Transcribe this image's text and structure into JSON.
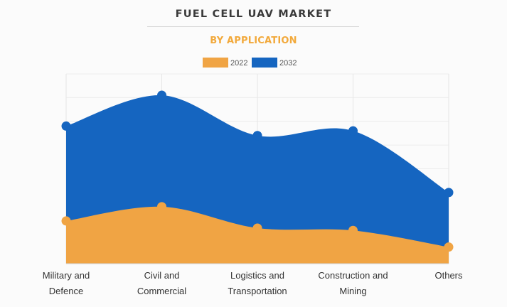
{
  "header": {
    "title": "FUEL CELL UAV MARKET",
    "subtitle": "BY APPLICATION"
  },
  "chart_data": {
    "type": "area",
    "categories": [
      [
        "Military and",
        "Defence"
      ],
      [
        "Civil and",
        "Commercial"
      ],
      [
        "Logistics and",
        "Transportation"
      ],
      [
        "Construction and",
        "Mining"
      ],
      [
        "Others"
      ]
    ],
    "series": [
      {
        "name": "2022",
        "color": "#f0a444",
        "values": [
          18,
          24,
          15,
          14,
          7
        ]
      },
      {
        "name": "2032",
        "color": "#1565c0",
        "values": [
          58,
          71,
          54,
          56,
          30
        ]
      }
    ],
    "ylim": [
      0,
      80
    ],
    "stacked": false,
    "grid": true,
    "legend": "top-center"
  }
}
